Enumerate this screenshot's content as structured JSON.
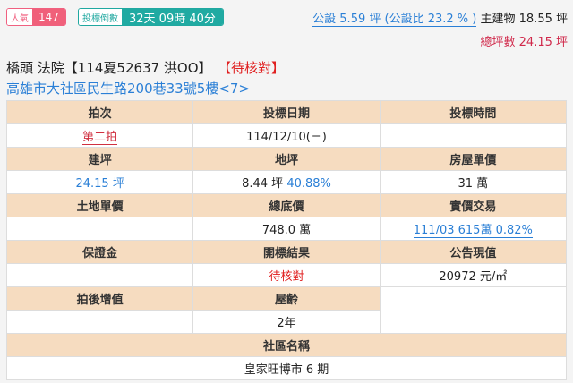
{
  "popularity": {
    "label": "人氣",
    "value": "147"
  },
  "countdown": {
    "label": "投標倒數",
    "value": "32天 09時 40分"
  },
  "area": {
    "public_link": "公設 5.59 坪 (公設比 23.2 % )",
    "main_label": "主建物",
    "main_value": "18.55 坪",
    "total": "總坪數 24.15 坪"
  },
  "case": {
    "title": "橋頭 法院【114夏52637 洪OO】",
    "status": "【待核對】",
    "address": "高雄市大社區民生路200巷33號5樓<7>"
  },
  "table": {
    "h1": [
      "拍次",
      "投標日期",
      "投標時間"
    ],
    "v1": [
      "第二拍",
      "114/12/10(三)",
      ""
    ],
    "h2": [
      "建坪",
      "地坪",
      "房屋單價"
    ],
    "v2": {
      "building": "24.15 坪",
      "land": "8.44 坪",
      "land_pct": "40.88%",
      "unit_price": "31 萬"
    },
    "h3": [
      "土地單價",
      "總底價",
      "實價交易"
    ],
    "v3": [
      "",
      "748.0 萬",
      "111/03 615萬 0.82%"
    ],
    "h4": [
      "保證金",
      "開標結果",
      "公告現值"
    ],
    "v4": [
      "",
      "待核對",
      "20972 元/㎡"
    ],
    "h5": [
      "拍後增值",
      "屋齡"
    ],
    "v5": [
      "",
      "2年"
    ],
    "h6": "社區名稱",
    "v6": "皇家旺博市 6 期"
  },
  "colors": {
    "accent": "#2a7fd6",
    "header_bg": "#f6dcc0",
    "alert": "#e02020",
    "teal": "#20aaa2",
    "pink": "#f0607a"
  }
}
